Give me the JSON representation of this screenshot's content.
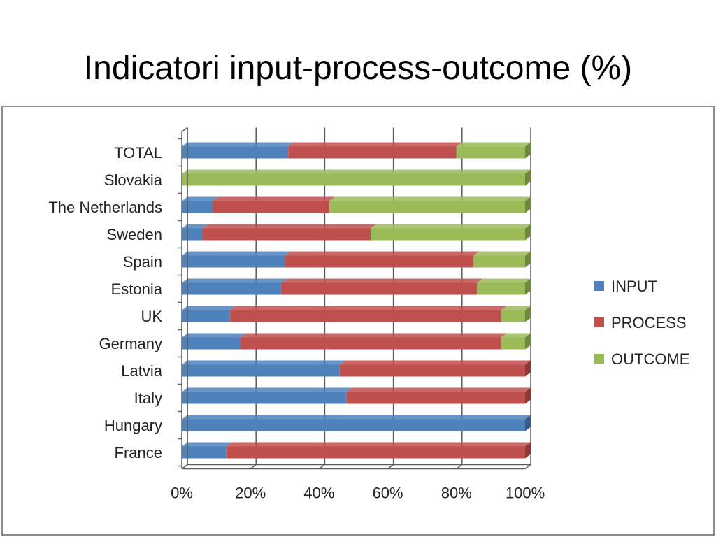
{
  "slide": {
    "title": "Indicatori input-process-outcome (%)"
  },
  "chart_data": {
    "type": "bar",
    "orientation": "horizontal",
    "stacked": "percent",
    "title": "",
    "xlabel": "",
    "ylabel": "",
    "xlim": [
      0,
      100
    ],
    "x_ticks": [
      "0%",
      "20%",
      "40%",
      "60%",
      "80%",
      "100%"
    ],
    "grid": true,
    "legend_position": "right",
    "categories": [
      "TOTAL",
      "Slovakia",
      "The Netherlands",
      "Sweden",
      "Spain",
      "Estonia",
      "UK",
      "Germany",
      "Latvia",
      "Italy",
      "Hungary",
      "France"
    ],
    "series": [
      {
        "name": "INPUT",
        "color": "#4f81bd",
        "values": [
          31,
          0,
          9,
          6,
          30,
          29,
          14,
          17,
          46,
          48,
          100,
          13
        ]
      },
      {
        "name": "PROCESS",
        "color": "#c0504d",
        "values": [
          49,
          0,
          34,
          49,
          55,
          57,
          79,
          76,
          54,
          52,
          0,
          87
        ]
      },
      {
        "name": "OUTCOME",
        "color": "#9bbb59",
        "values": [
          20,
          100,
          57,
          45,
          15,
          14,
          7,
          7,
          0,
          0,
          0,
          0
        ]
      }
    ]
  }
}
